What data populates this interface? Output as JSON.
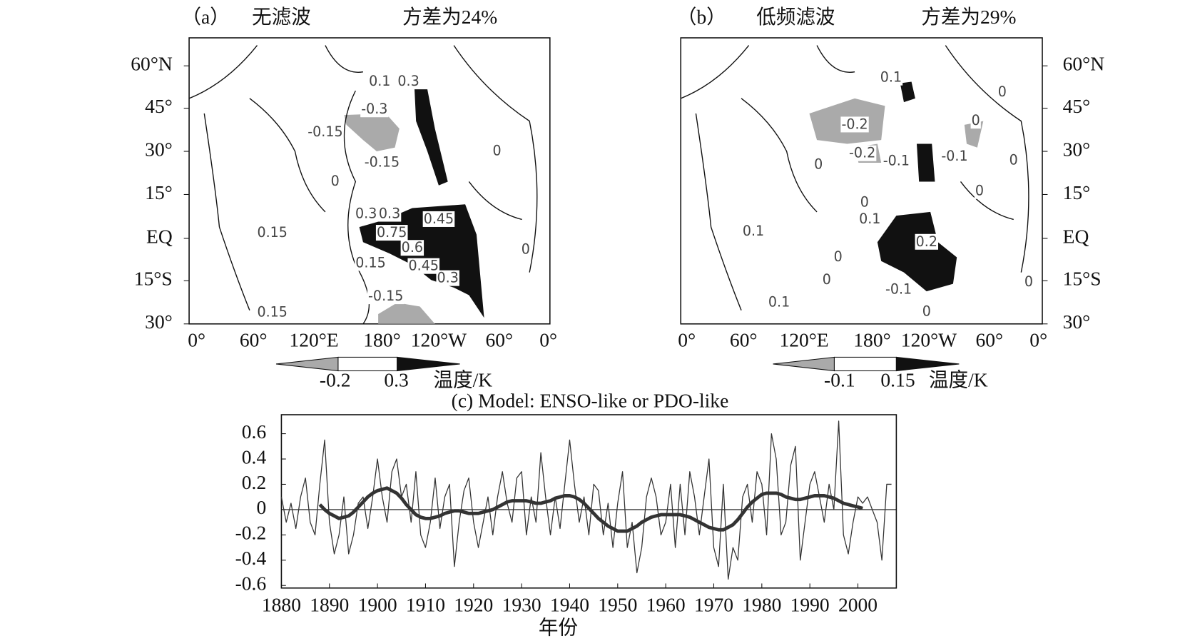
{
  "panels": [
    {
      "label": "（a）",
      "title": "无滤波",
      "variance": "方差为24%",
      "contour_labels": [
        "0.1",
        "0.3",
        "-0.3",
        "-0.15",
        "-0.15",
        "0",
        "0",
        "0.15",
        "0.3",
        "0.3",
        "0.45",
        "0.75",
        "0.6",
        "0.15",
        "0.45",
        "0.3",
        "-0.15",
        "0.15",
        "0"
      ],
      "colorbar": {
        "ticks": [
          "-0.2",
          "0.3"
        ],
        "unit": "温度/K"
      }
    },
    {
      "label": "（b）",
      "title": "低频滤波",
      "variance": "方差为29%",
      "contour_labels": [
        "0.1",
        "0",
        "-0.2",
        "0",
        "-0.2",
        "-0.1",
        "-0.1",
        "0",
        "0",
        "0",
        "0",
        "0.1",
        "0.1",
        "0.2",
        "0",
        "0",
        "-0.1",
        "0",
        "0.1",
        "0"
      ],
      "colorbar": {
        "ticks": [
          "-0.1",
          "0.15"
        ],
        "unit": "温度/K"
      }
    }
  ],
  "map_axes": {
    "lat_labels": [
      "60°N",
      "45°",
      "30°",
      "15°",
      "EQ",
      "15°S",
      "30°"
    ],
    "lon_labels": [
      "0°",
      "60°",
      "120°E",
      "180°",
      "120°W",
      "60°",
      "0°"
    ]
  },
  "chart_data": {
    "type": "line",
    "title": "(c) Model: ENSO-like or PDO-like",
    "x_label": "年份",
    "x": [
      1880,
      1881,
      1882,
      1883,
      1884,
      1885,
      1886,
      1887,
      1888,
      1889,
      1890,
      1891,
      1892,
      1893,
      1894,
      1895,
      1896,
      1897,
      1898,
      1899,
      1900,
      1901,
      1902,
      1903,
      1904,
      1905,
      1906,
      1907,
      1908,
      1909,
      1910,
      1911,
      1912,
      1913,
      1914,
      1915,
      1916,
      1917,
      1918,
      1919,
      1920,
      1921,
      1922,
      1923,
      1924,
      1925,
      1926,
      1927,
      1928,
      1929,
      1930,
      1931,
      1932,
      1933,
      1934,
      1935,
      1936,
      1937,
      1938,
      1939,
      1940,
      1941,
      1942,
      1943,
      1944,
      1945,
      1946,
      1947,
      1948,
      1949,
      1950,
      1951,
      1952,
      1953,
      1954,
      1955,
      1956,
      1957,
      1958,
      1959,
      1960,
      1961,
      1962,
      1963,
      1964,
      1965,
      1966,
      1967,
      1968,
      1969,
      1970,
      1971,
      1972,
      1973,
      1974,
      1975,
      1976,
      1977,
      1978,
      1979,
      1980,
      1981,
      1982,
      1983,
      1984,
      1985,
      1986,
      1987,
      1988,
      1989,
      1990,
      1991,
      1992,
      1993,
      1994,
      1995,
      1996,
      1997,
      1998,
      1999,
      2000,
      2001,
      2002,
      2003,
      2004,
      2005,
      2006,
      2007
    ],
    "series": [
      {
        "color": "#333333",
        "values": [
          0.1,
          -0.1,
          0.05,
          -0.15,
          0.1,
          0.25,
          -0.1,
          -0.2,
          0.2,
          0.55,
          -0.1,
          -0.35,
          -0.2,
          0.1,
          -0.35,
          -0.2,
          0.05,
          0.1,
          -0.15,
          0.1,
          0.4,
          0.1,
          -0.1,
          0.3,
          0.4,
          0.1,
          0.2,
          -0.1,
          0.3,
          -0.2,
          -0.3,
          -0.1,
          0.25,
          -0.15,
          0.1,
          0.2,
          -0.45,
          -0.1,
          0.15,
          0.25,
          -0.1,
          -0.3,
          -0.1,
          0.1,
          -0.2,
          0.1,
          0.3,
          0.05,
          -0.1,
          0.25,
          0.3,
          -0.2,
          0.1,
          -0.1,
          0.45,
          0.1,
          -0.2,
          0.1,
          -0.15,
          0.2,
          0.55,
          0.2,
          -0.1,
          0.1,
          -0.2,
          0.2,
          0.15,
          -0.2,
          0.05,
          -0.3,
          0.05,
          0.3,
          -0.3,
          -0.1,
          -0.5,
          -0.3,
          0.1,
          0.25,
          0.1,
          -0.2,
          -0.1,
          0.2,
          -0.3,
          0.2,
          -0.2,
          0.3,
          0.1,
          -0.2,
          0.1,
          0.4,
          -0.3,
          -0.45,
          0.2,
          -0.55,
          -0.3,
          -0.4,
          0.1,
          0.2,
          -0.1,
          0.3,
          0.2,
          -0.2,
          0.6,
          0.4,
          -0.2,
          -0.1,
          0.35,
          0.5,
          -0.4,
          -0.1,
          0.2,
          0.3,
          0.1,
          -0.1,
          0.2,
          0,
          0.7,
          -0.2,
          -0.35,
          -0.1,
          0.1,
          0.05,
          0.1,
          0,
          -0.1,
          -0.4,
          0.2,
          0.2
        ]
      },
      {
        "color": "#333333",
        "values": [
          null,
          null,
          null,
          null,
          null,
          null,
          null,
          null,
          0.04,
          0.0,
          -0.03,
          -0.05,
          -0.07,
          -0.06,
          -0.05,
          -0.02,
          0.02,
          0.06,
          0.1,
          0.13,
          0.15,
          0.16,
          0.17,
          0.15,
          0.13,
          0.09,
          0.04,
          0,
          -0.04,
          -0.06,
          -0.07,
          -0.07,
          -0.06,
          -0.05,
          -0.03,
          -0.02,
          -0.01,
          -0.01,
          -0.02,
          -0.03,
          -0.03,
          -0.03,
          -0.02,
          -0.01,
          0,
          0.02,
          0.04,
          0.06,
          0.07,
          0.07,
          0.07,
          0.07,
          0.06,
          0.05,
          0.05,
          0.06,
          0.07,
          0.09,
          0.1,
          0.11,
          0.11,
          0.1,
          0.08,
          0.05,
          0.01,
          -0.03,
          -0.07,
          -0.1,
          -0.13,
          -0.15,
          -0.17,
          -0.17,
          -0.17,
          -0.15,
          -0.13,
          -0.1,
          -0.08,
          -0.06,
          -0.05,
          -0.04,
          -0.04,
          -0.04,
          -0.04,
          -0.04,
          -0.05,
          -0.06,
          -0.08,
          -0.1,
          -0.12,
          -0.14,
          -0.15,
          -0.16,
          -0.16,
          -0.14,
          -0.12,
          -0.08,
          -0.03,
          0.02,
          0.06,
          0.09,
          0.12,
          0.13,
          0.13,
          0.13,
          0.12,
          0.1,
          0.09,
          0.08,
          0.08,
          0.09,
          0.1,
          0.11,
          0.11,
          0.11,
          0.1,
          0.09,
          0.07,
          0.05,
          0.04,
          0.03,
          0.02,
          0.01,
          null,
          null,
          null,
          null,
          null,
          null
        ]
      }
    ],
    "xlim": [
      1880,
      2008
    ],
    "ylim": [
      -0.62,
      0.75
    ],
    "xticks": [
      1880,
      1890,
      1900,
      1910,
      1920,
      1930,
      1940,
      1950,
      1960,
      1970,
      1980,
      1990,
      2000
    ],
    "yticks": [
      0.6,
      0.4,
      0.2,
      0,
      -0.2,
      -0.4,
      -0.6
    ]
  }
}
